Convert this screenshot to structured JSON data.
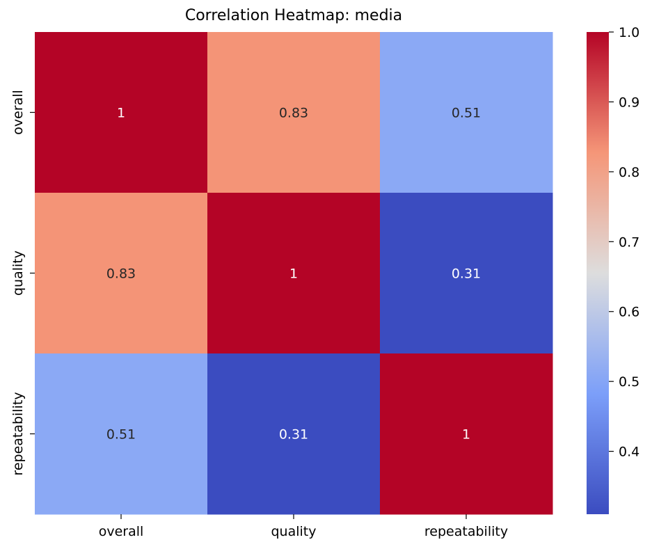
{
  "chart_data": {
    "type": "heatmap",
    "title": "Correlation Heatmap: media",
    "xlabel": "",
    "ylabel": "",
    "row_labels": [
      "overall",
      "quality",
      "repeatability"
    ],
    "col_labels": [
      "overall",
      "quality",
      "repeatability"
    ],
    "values": [
      [
        1.0,
        0.83,
        0.51
      ],
      [
        0.83,
        1.0,
        0.31
      ],
      [
        0.51,
        0.31,
        1.0
      ]
    ],
    "value_labels": [
      [
        "1",
        "0.83",
        "0.51"
      ],
      [
        "0.83",
        "1",
        "0.31"
      ],
      [
        "0.51",
        "0.31",
        "1"
      ]
    ],
    "colormap": "coolwarm",
    "colorbar": {
      "range": [
        0.31,
        1.0
      ],
      "ticks": [
        0.4,
        0.5,
        0.6,
        0.7,
        0.8,
        0.9,
        1.0
      ],
      "tick_labels": [
        "0.4",
        "0.5",
        "0.6",
        "0.7",
        "0.8",
        "0.9",
        "1.0"
      ]
    },
    "legend": "none",
    "grid": false
  }
}
